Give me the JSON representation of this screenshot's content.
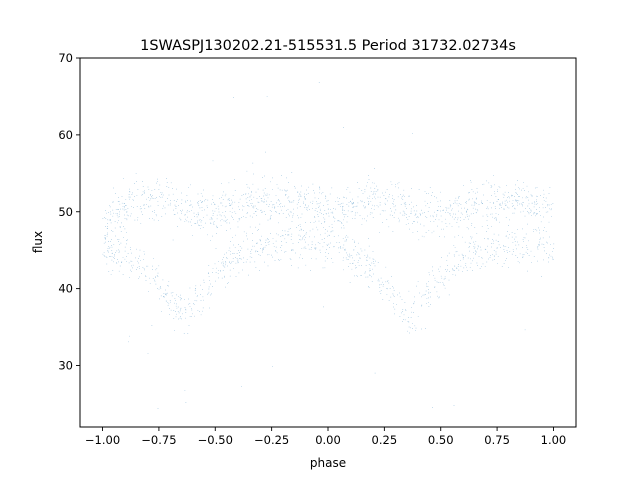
{
  "chart_data": {
    "type": "scatter",
    "title": "1SWASPJ130202.21-515531.5 Period 31732.02734s",
    "xlabel": "phase",
    "ylabel": "flux",
    "xlim": [
      -1.1,
      1.1
    ],
    "ylim": [
      22,
      70
    ],
    "xticks": [
      -1.0,
      -0.75,
      -0.5,
      -0.25,
      0.0,
      0.25,
      0.5,
      0.75,
      1.0
    ],
    "xtick_labels": [
      "−1.00",
      "−0.75",
      "−0.50",
      "−0.25",
      "0.00",
      "0.25",
      "0.50",
      "0.75",
      "1.00"
    ],
    "yticks": [
      30,
      40,
      50,
      60,
      70
    ],
    "ytick_labels": [
      "30",
      "40",
      "50",
      "60",
      "70"
    ],
    "grid": false,
    "legend": "none",
    "color": "#1f77b4",
    "series": [
      {
        "phase_range": [
          -1.0,
          1.0
        ],
        "period_in_phase": 1.0,
        "profile": {
          "phase": [
            0.0,
            0.1,
            0.2,
            0.3,
            0.35,
            0.4,
            0.5,
            0.6,
            0.7,
            0.8,
            0.9,
            1.0
          ],
          "upper_band_center": [
            48.5,
            50.5,
            51.5,
            51.0,
            50.5,
            50.0,
            50.0,
            50.5,
            51.0,
            51.5,
            51.0,
            50.5
          ],
          "lower_band_center": [
            45.5,
            44.5,
            42.5,
            38.5,
            36.5,
            37.5,
            41.5,
            44.5,
            45.5,
            45.8,
            45.8,
            45.6
          ],
          "band_spread": [
            2.5,
            2.5,
            2.5,
            2.5,
            2.5,
            2.5,
            2.5,
            2.5,
            2.5,
            2.5,
            2.5,
            2.5
          ]
        },
        "outlier_range": [
          24,
          68
        ],
        "points_per_unit_phase": 30000
      }
    ]
  }
}
